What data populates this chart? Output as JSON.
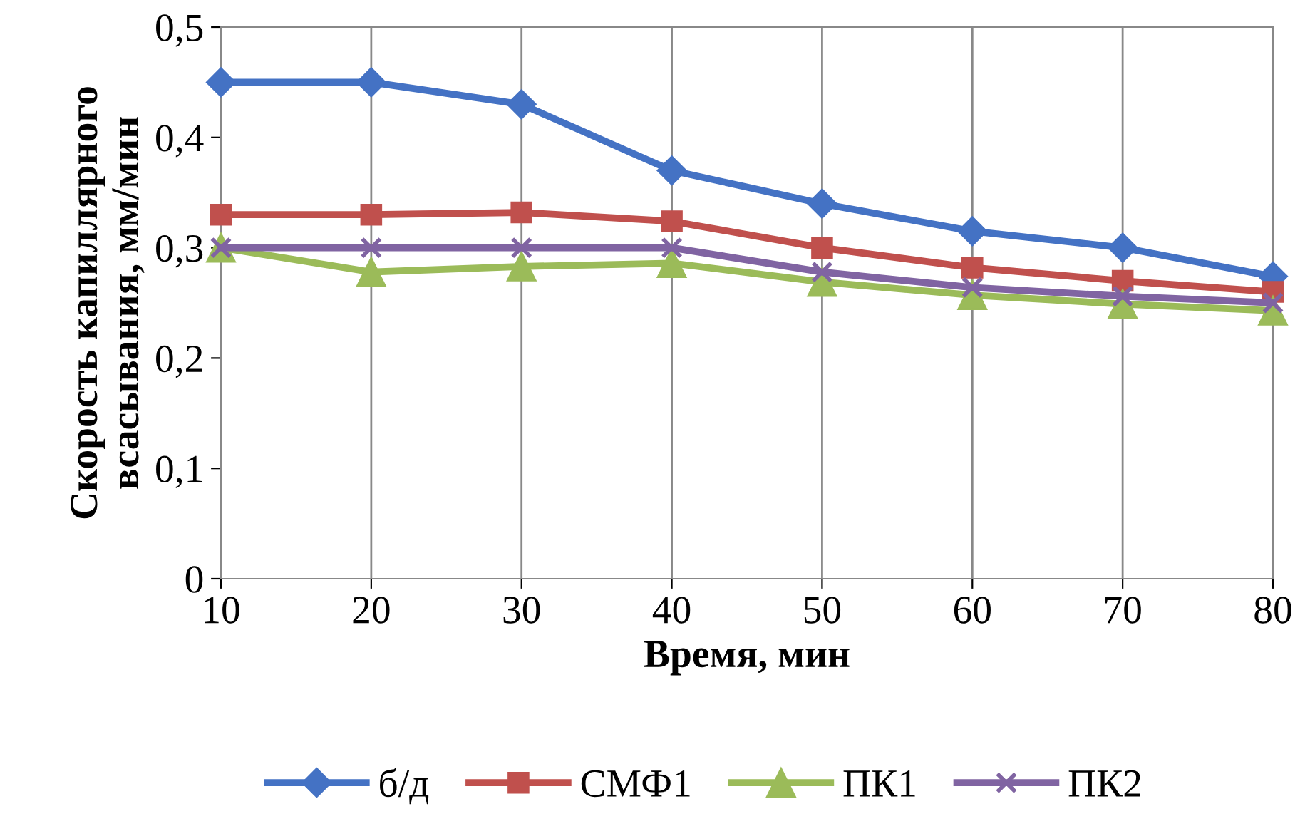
{
  "chart_data": {
    "type": "line",
    "xlabel": "Время, мин",
    "ylabel": "Скорость капиллярного\nвсасывания, мм/мин",
    "x": [
      10,
      20,
      30,
      40,
      50,
      60,
      70,
      80
    ],
    "series": [
      {
        "name": "б/д",
        "color": "#4472c4",
        "marker": "diamond",
        "values": [
          0.45,
          0.45,
          0.43,
          0.37,
          0.34,
          0.315,
          0.3,
          0.274
        ]
      },
      {
        "name": "СМФ1",
        "color": "#c0504d",
        "marker": "square",
        "values": [
          0.33,
          0.33,
          0.332,
          0.324,
          0.3,
          0.282,
          0.27,
          0.26
        ]
      },
      {
        "name": "ПК1",
        "color": "#9bbb59",
        "marker": "triangle",
        "values": [
          0.3,
          0.278,
          0.283,
          0.286,
          0.269,
          0.257,
          0.249,
          0.243
        ]
      },
      {
        "name": "ПК2",
        "color": "#8064a2",
        "marker": "cross",
        "values": [
          0.3,
          0.3,
          0.3,
          0.3,
          0.278,
          0.264,
          0.256,
          0.25
        ]
      }
    ],
    "xlim": [
      10,
      80
    ],
    "xticks": [
      10,
      20,
      30,
      40,
      50,
      60,
      70,
      80
    ],
    "ylim": [
      0,
      0.5
    ],
    "yticks": [
      {
        "value": 0,
        "label": "0"
      },
      {
        "value": 0.1,
        "label": "0,1"
      },
      {
        "value": 0.2,
        "label": "0,2"
      },
      {
        "value": 0.3,
        "label": "0,3"
      },
      {
        "value": 0.4,
        "label": "0,4"
      },
      {
        "value": 0.5,
        "label": "0,5"
      }
    ],
    "grid": "x",
    "legend": "bottom",
    "line_style": "solid"
  }
}
